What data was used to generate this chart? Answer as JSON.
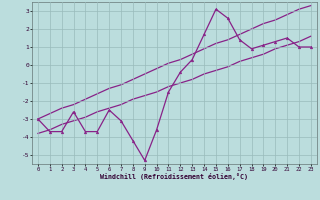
{
  "xlabel": "Windchill (Refroidissement éolien,°C)",
  "x_data": [
    0,
    1,
    2,
    3,
    4,
    5,
    6,
    7,
    8,
    9,
    10,
    11,
    12,
    13,
    14,
    15,
    16,
    17,
    18,
    19,
    20,
    21,
    22,
    23
  ],
  "y_main": [
    -3.0,
    -3.7,
    -3.7,
    -2.6,
    -3.7,
    -3.7,
    -2.5,
    -3.1,
    -4.2,
    -5.3,
    -3.6,
    -1.5,
    -0.4,
    0.3,
    1.7,
    3.1,
    2.6,
    1.4,
    0.9,
    1.1,
    1.3,
    1.5,
    1.0,
    1.0
  ],
  "y_line1": [
    -3.8,
    -3.6,
    -3.3,
    -3.1,
    -2.9,
    -2.6,
    -2.4,
    -2.2,
    -1.9,
    -1.7,
    -1.5,
    -1.2,
    -1.0,
    -0.8,
    -0.5,
    -0.3,
    -0.1,
    0.2,
    0.4,
    0.6,
    0.9,
    1.1,
    1.3,
    1.6
  ],
  "y_line2": [
    -3.0,
    -2.7,
    -2.4,
    -2.2,
    -1.9,
    -1.6,
    -1.3,
    -1.1,
    -0.8,
    -0.5,
    -0.2,
    0.1,
    0.3,
    0.6,
    0.9,
    1.2,
    1.4,
    1.7,
    2.0,
    2.3,
    2.5,
    2.8,
    3.1,
    3.3
  ],
  "line_color": "#882288",
  "bg_color": "#bbdddd",
  "grid_color": "#99bbbb",
  "ylim": [
    -5.5,
    3.5
  ],
  "yticks": [
    -5,
    -4,
    -3,
    -2,
    -1,
    0,
    1,
    2,
    3
  ],
  "xlim": [
    -0.5,
    23.5
  ],
  "xticks": [
    0,
    1,
    2,
    3,
    4,
    5,
    6,
    7,
    8,
    9,
    10,
    11,
    12,
    13,
    14,
    15,
    16,
    17,
    18,
    19,
    20,
    21,
    22,
    23
  ]
}
